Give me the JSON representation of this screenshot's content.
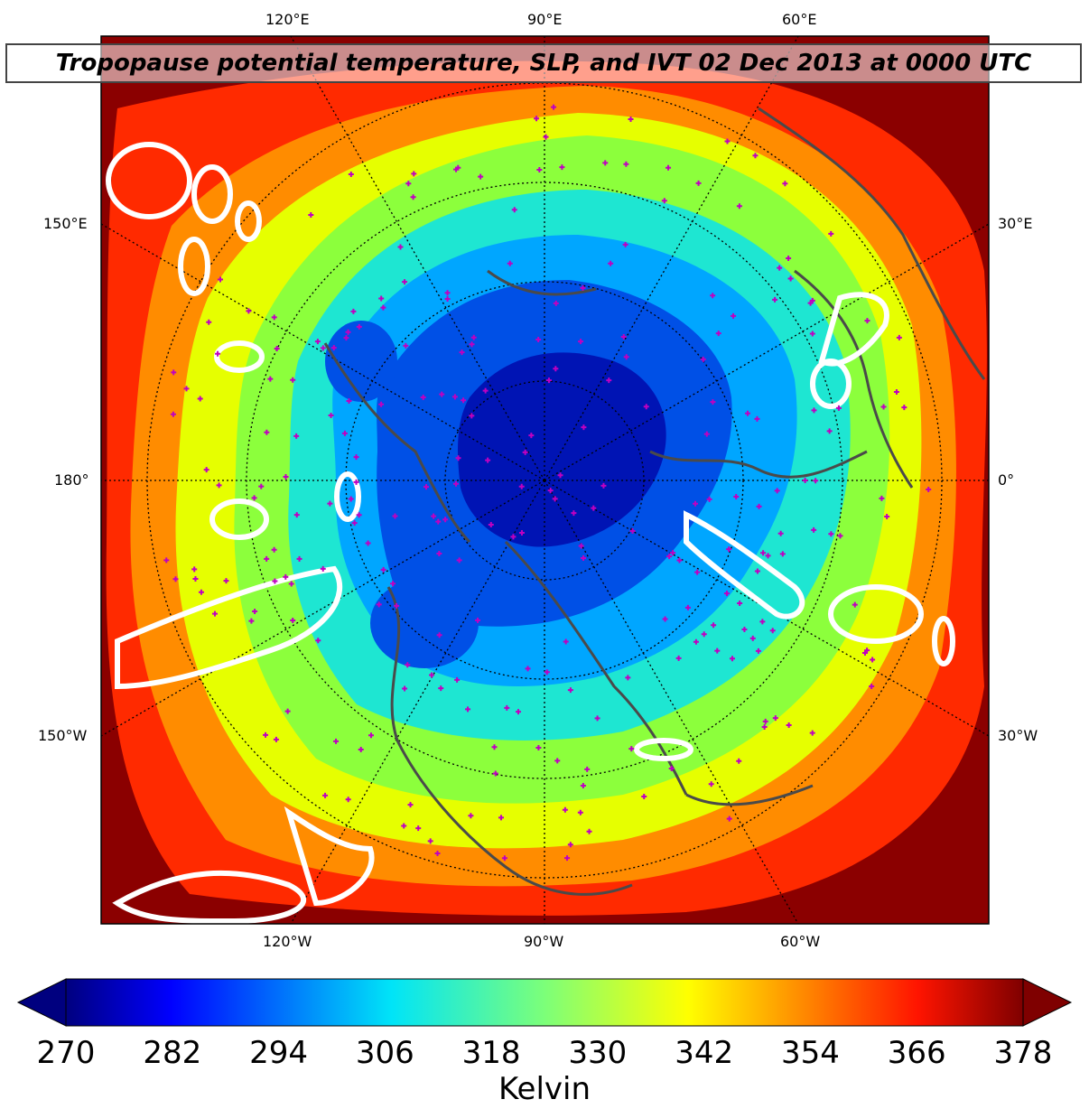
{
  "title": "Tropopause potential temperature, SLP, and IVT 02 Dec 2013 at 0000 UTC",
  "map": {
    "longitude_labels_top": [
      "120°E",
      "90°E",
      "60°E"
    ],
    "longitude_labels_bottom": [
      "120°W",
      "90°W",
      "60°W"
    ],
    "latitude_labels_left": [
      "150°E",
      "180°",
      "150°W"
    ],
    "latitude_labels_right": [
      "30°E",
      "0°",
      "30°W"
    ],
    "colors": {
      "outer": "#8b0000",
      "ring_red": "#ff2a00",
      "ring_orange": "#ff8c00",
      "ring_yellow": "#e6ff00",
      "ring_green": "#8cff3c",
      "ring_cyan": "#1ee6d2",
      "ring_lightblue": "#00a6ff",
      "core_blue": "#0050e6",
      "core_dark": "#0014b4",
      "coastline": "#4a4a4a",
      "ivt_contour": "#ffffff",
      "station_marker": "#c000c0"
    }
  },
  "colorbar": {
    "label": "Kelvin",
    "ticks": [
      "270",
      "282",
      "294",
      "306",
      "318",
      "330",
      "342",
      "354",
      "366",
      "378"
    ],
    "min": 270,
    "max": 378,
    "extend": "both"
  }
}
